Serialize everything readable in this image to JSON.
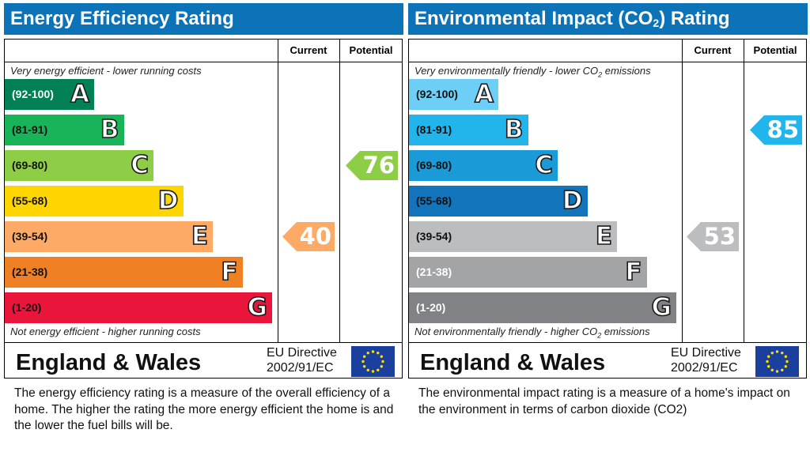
{
  "chart_data": [
    {
      "type": "bar",
      "title": "Energy Efficiency Rating",
      "columns": [
        "Current",
        "Potential"
      ],
      "top_caption": "Very energy efficient - lower running costs",
      "bottom_caption": "Not energy efficient - higher running costs",
      "bands": [
        {
          "letter": "A",
          "range": "(92-100)",
          "color": "#008054"
        },
        {
          "letter": "B",
          "range": "(81-91)",
          "color": "#19b459"
        },
        {
          "letter": "C",
          "range": "(69-80)",
          "color": "#8dce46"
        },
        {
          "letter": "D",
          "range": "(55-68)",
          "color": "#ffd500"
        },
        {
          "letter": "E",
          "range": "(39-54)",
          "color": "#fcaa65"
        },
        {
          "letter": "F",
          "range": "(21-38)",
          "color": "#ef8023"
        },
        {
          "letter": "G",
          "range": "(1-20)",
          "color": "#e9153b"
        }
      ],
      "current": {
        "value": "40",
        "band": "E",
        "color": "#fcaa65"
      },
      "potential": {
        "value": "76",
        "band": "C",
        "color": "#8dce46"
      },
      "footer": {
        "region": "England & Wales",
        "directive_line1": "EU Directive",
        "directive_line2": "2002/91/EC"
      },
      "description": "The energy efficiency rating is a measure of the overall efficiency of a home.  The higher the rating the more energy efficient the home is and the lower the fuel bills will be."
    },
    {
      "type": "bar",
      "title": "Environmental Impact (CO",
      "title_sub": "2",
      "title_tail": ") Rating",
      "columns": [
        "Current",
        "Potential"
      ],
      "top_caption": "Very environmentally friendly - lower CO",
      "top_caption_sub": "2",
      "top_caption_tail": " emissions",
      "bottom_caption": "Not environmentally friendly - higher CO",
      "bottom_caption_sub": "2",
      "bottom_caption_tail": " emissions",
      "bands": [
        {
          "letter": "A",
          "range": "(92-100)",
          "color": "#6ecff6"
        },
        {
          "letter": "B",
          "range": "(81-91)",
          "color": "#22b5eb"
        },
        {
          "letter": "C",
          "range": "(69-80)",
          "color": "#1a9ad6"
        },
        {
          "letter": "D",
          "range": "(55-68)",
          "color": "#1275bc"
        },
        {
          "letter": "E",
          "range": "(39-54)",
          "color": "#bbbdbf"
        },
        {
          "letter": "F",
          "range": "(21-38)",
          "color": "#a2a4a6"
        },
        {
          "letter": "G",
          "range": "(1-20)",
          "color": "#808285"
        }
      ],
      "current": {
        "value": "53",
        "band": "E",
        "color": "#bbbdbf"
      },
      "potential": {
        "value": "85",
        "band": "B",
        "color": "#22b5eb"
      },
      "footer": {
        "region": "England & Wales",
        "directive_line1": "EU Directive",
        "directive_line2": "2002/91/EC"
      },
      "description": "The environmental impact rating is a measure of a home's impact on the environment in terms of carbon dioxide (CO2)"
    }
  ],
  "icons": {
    "flag": "eu-flag-icon"
  }
}
